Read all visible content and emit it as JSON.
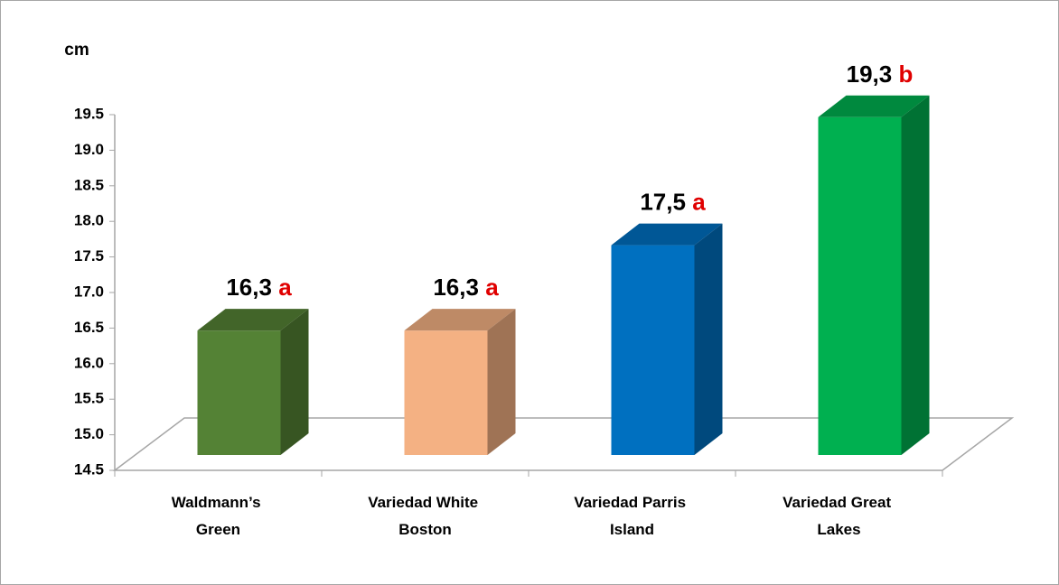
{
  "chart_data": {
    "type": "bar3d",
    "y_label": "cm",
    "categories": [
      "Waldmann’s Green",
      "Variedad White Boston",
      "Variedad Parris Island",
      "Variedad Great Lakes"
    ],
    "values": [
      16.3,
      16.3,
      17.5,
      19.3
    ],
    "value_labels": [
      "16,3",
      "16,3",
      "17,5",
      "19,3"
    ],
    "letters": [
      "a",
      "a",
      "a",
      "b"
    ],
    "colors": [
      "#548235",
      "#f4b183",
      "#0070c0",
      "#00b050"
    ],
    "letter_color": "#e00000",
    "ylim": [
      14.5,
      19.5
    ],
    "yticks": [
      14.5,
      {
        "value": 15,
        "label": "15.0"
      },
      15.5,
      {
        "value": 16,
        "label": "16.0"
      },
      16.5,
      {
        "value": 17,
        "label": "17.0"
      },
      17.5,
      {
        "value": 18,
        "label": "18.0"
      },
      18.5,
      {
        "value": 19,
        "label": "19.0"
      },
      19.5
    ]
  }
}
